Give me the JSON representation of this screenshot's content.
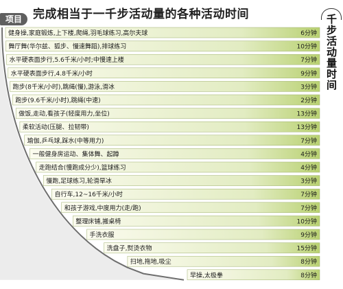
{
  "header": {
    "title": "完成相当于一千步活动量的各种活动时间",
    "left_tab": "项目",
    "right_label": "千步活动量时间"
  },
  "colors": {
    "bar_light": "#fbfbef",
    "bar_mid": "#e2ecc2",
    "bar_dark": "#b9d172",
    "bar_border": "#9cae6a",
    "curve": "#6e6e6e",
    "tab": "#5f5f5f"
  },
  "chart_data": {
    "type": "table",
    "title": "完成相当于一千步活动量的各种活动时间",
    "rows": [
      {
        "label": "健身操,家庭锻炼,上下楼,爬绳,羽毛球练习,高尔夫球",
        "value": "6分钟",
        "minutes": 6
      },
      {
        "label": "舞厅舞(华尔兹、狐步、慢速舞蹈),排球练习",
        "value": "10分钟",
        "minutes": 10
      },
      {
        "label": "水平硬表面步行,5.6千米/小时;中慢速上楼",
        "value": "7分钟",
        "minutes": 7
      },
      {
        "label": "水平硬表面步行,4.8千米/小时",
        "value": "9分钟",
        "minutes": 9
      },
      {
        "label": "跑步(8千米/小时),跳绳(慢),游泳,滑冰",
        "value": "3分钟",
        "minutes": 3
      },
      {
        "label": "跑步(9.6千米/小时),跳绳(中速)",
        "value": "2分钟",
        "minutes": 2
      },
      {
        "label": "做饭,走动,看孩子(轻度用力,坐位)",
        "value": "13分钟",
        "minutes": 13
      },
      {
        "label": "柔软活动(压腿、拉韧带)",
        "value": "13分钟",
        "minutes": 13
      },
      {
        "label": "瑜伽,乒乓球,踩水(中等用力)",
        "value": "7分钟",
        "minutes": 7
      },
      {
        "label": "一般健身房运动、集体舞、起蹲",
        "value": "4分钟",
        "minutes": 4
      },
      {
        "label": "走跑结合(慢跑成分少),篮球练习",
        "value": "4分钟",
        "minutes": 4
      },
      {
        "label": "慢跑,足球练习,轮滑旱冰",
        "value": "3分钟",
        "minutes": 3
      },
      {
        "label": "自行车,12~16千米/小时",
        "value": "7分钟",
        "minutes": 7
      },
      {
        "label": "和孩子游戏,中度用力(走/跑)",
        "value": "7分钟",
        "minutes": 7
      },
      {
        "label": "整理床铺,搬桌椅",
        "value": "10分钟",
        "minutes": 10
      },
      {
        "label": "手洗衣服",
        "value": "9分钟",
        "minutes": 9
      },
      {
        "label": "洗盘子,熨烫衣物",
        "value": "15分钟",
        "minutes": 15
      },
      {
        "label": "扫地,拖地,吸尘",
        "value": "8分钟",
        "minutes": 8
      },
      {
        "label": "早操,太极拳",
        "value": "8分钟",
        "minutes": 8
      }
    ]
  }
}
